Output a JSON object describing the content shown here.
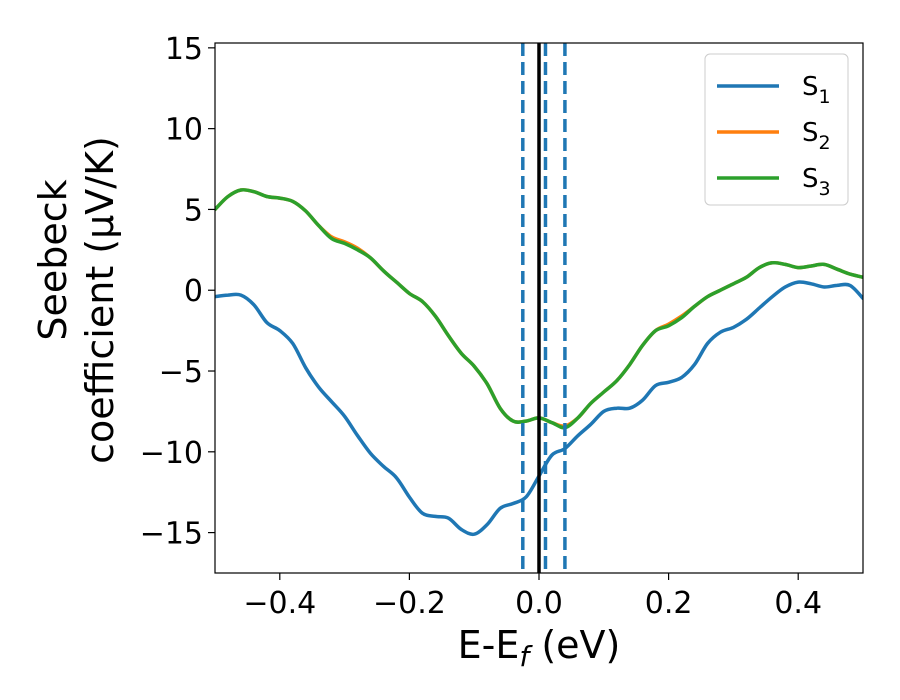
{
  "chart_data": {
    "type": "line",
    "xlabel": "E-E",
    "xlabel_sub": "f",
    "xlabel_unit": " (eV)",
    "ylabel_line1": "Seebeck",
    "ylabel_line2": "coefficient  (μV/K)",
    "xlim": [
      -0.5,
      0.5
    ],
    "ylim": [
      -17.5,
      15.3
    ],
    "x_ticks": [
      -0.4,
      -0.2,
      0.0,
      0.2,
      0.4
    ],
    "x_tick_labels": [
      "−0.4",
      "−0.2",
      "0.0",
      "0.2",
      "0.4"
    ],
    "y_ticks": [
      15,
      10,
      5,
      0,
      -5,
      -10,
      -15
    ],
    "y_tick_labels": [
      "15",
      "10",
      "5",
      "0",
      "−5",
      "−10",
      "−15"
    ],
    "grid": false,
    "legend_position": "top-right",
    "series": [
      {
        "name": "S",
        "sub": "1",
        "color": "#1f77b4",
        "points": [
          [
            -0.5,
            -0.4
          ],
          [
            -0.48,
            -0.3
          ],
          [
            -0.46,
            -0.3
          ],
          [
            -0.44,
            -0.9
          ],
          [
            -0.42,
            -2.0
          ],
          [
            -0.4,
            -2.5
          ],
          [
            -0.38,
            -3.3
          ],
          [
            -0.36,
            -4.8
          ],
          [
            -0.34,
            -6.0
          ],
          [
            -0.32,
            -6.9
          ],
          [
            -0.3,
            -7.8
          ],
          [
            -0.28,
            -9.0
          ],
          [
            -0.26,
            -10.1
          ],
          [
            -0.24,
            -10.9
          ],
          [
            -0.22,
            -11.6
          ],
          [
            -0.2,
            -12.8
          ],
          [
            -0.18,
            -13.8
          ],
          [
            -0.16,
            -14.0
          ],
          [
            -0.14,
            -14.1
          ],
          [
            -0.12,
            -14.8
          ],
          [
            -0.1,
            -15.1
          ],
          [
            -0.08,
            -14.5
          ],
          [
            -0.06,
            -13.5
          ],
          [
            -0.04,
            -13.2
          ],
          [
            -0.02,
            -12.8
          ],
          [
            0.0,
            -11.5
          ],
          [
            0.02,
            -10.2
          ],
          [
            0.04,
            -9.8
          ],
          [
            0.06,
            -9.0
          ],
          [
            0.08,
            -8.3
          ],
          [
            0.1,
            -7.5
          ],
          [
            0.12,
            -7.3
          ],
          [
            0.14,
            -7.3
          ],
          [
            0.16,
            -6.8
          ],
          [
            0.18,
            -5.9
          ],
          [
            0.2,
            -5.7
          ],
          [
            0.22,
            -5.4
          ],
          [
            0.24,
            -4.6
          ],
          [
            0.26,
            -3.3
          ],
          [
            0.28,
            -2.6
          ],
          [
            0.3,
            -2.3
          ],
          [
            0.32,
            -1.8
          ],
          [
            0.34,
            -1.1
          ],
          [
            0.36,
            -0.4
          ],
          [
            0.38,
            0.2
          ],
          [
            0.4,
            0.5
          ],
          [
            0.42,
            0.4
          ],
          [
            0.44,
            0.2
          ],
          [
            0.46,
            0.3
          ],
          [
            0.48,
            0.3
          ],
          [
            0.5,
            -0.5
          ]
        ]
      },
      {
        "name": "S",
        "sub": "2",
        "color": "#ff7f0e",
        "points": [
          [
            -0.5,
            5.0
          ],
          [
            -0.48,
            5.8
          ],
          [
            -0.46,
            6.2
          ],
          [
            -0.44,
            6.1
          ],
          [
            -0.42,
            5.8
          ],
          [
            -0.4,
            5.7
          ],
          [
            -0.38,
            5.5
          ],
          [
            -0.36,
            4.9
          ],
          [
            -0.34,
            4.0
          ],
          [
            -0.32,
            3.3
          ],
          [
            -0.3,
            3.0
          ],
          [
            -0.28,
            2.6
          ],
          [
            -0.26,
            2.0
          ],
          [
            -0.24,
            1.2
          ],
          [
            -0.22,
            0.5
          ],
          [
            -0.2,
            -0.2
          ],
          [
            -0.18,
            -0.7
          ],
          [
            -0.16,
            -1.6
          ],
          [
            -0.14,
            -2.8
          ],
          [
            -0.12,
            -3.9
          ],
          [
            -0.1,
            -4.7
          ],
          [
            -0.08,
            -5.8
          ],
          [
            -0.06,
            -7.3
          ],
          [
            -0.04,
            -8.1
          ],
          [
            -0.02,
            -8.1
          ],
          [
            0.0,
            -7.9
          ],
          [
            0.02,
            -8.2
          ],
          [
            0.04,
            -8.4
          ],
          [
            0.06,
            -7.9
          ],
          [
            0.08,
            -7.0
          ],
          [
            0.1,
            -6.3
          ],
          [
            0.12,
            -5.6
          ],
          [
            0.14,
            -4.6
          ],
          [
            0.16,
            -3.4
          ],
          [
            0.18,
            -2.5
          ],
          [
            0.2,
            -2.1
          ],
          [
            0.22,
            -1.6
          ],
          [
            0.24,
            -1.0
          ],
          [
            0.26,
            -0.4
          ],
          [
            0.28,
            0.0
          ],
          [
            0.3,
            0.4
          ],
          [
            0.32,
            0.8
          ],
          [
            0.34,
            1.4
          ],
          [
            0.36,
            1.7
          ],
          [
            0.38,
            1.6
          ],
          [
            0.4,
            1.4
          ],
          [
            0.42,
            1.5
          ],
          [
            0.44,
            1.6
          ],
          [
            0.46,
            1.3
          ],
          [
            0.48,
            1.0
          ],
          [
            0.5,
            0.8
          ]
        ]
      },
      {
        "name": "S",
        "sub": "3",
        "color": "#2ca02c",
        "points": [
          [
            -0.5,
            5.0
          ],
          [
            -0.48,
            5.8
          ],
          [
            -0.46,
            6.2
          ],
          [
            -0.44,
            6.1
          ],
          [
            -0.42,
            5.8
          ],
          [
            -0.4,
            5.7
          ],
          [
            -0.38,
            5.5
          ],
          [
            -0.36,
            4.9
          ],
          [
            -0.34,
            4.0
          ],
          [
            -0.32,
            3.2
          ],
          [
            -0.3,
            2.9
          ],
          [
            -0.28,
            2.5
          ],
          [
            -0.26,
            2.0
          ],
          [
            -0.24,
            1.2
          ],
          [
            -0.22,
            0.5
          ],
          [
            -0.2,
            -0.2
          ],
          [
            -0.18,
            -0.7
          ],
          [
            -0.16,
            -1.6
          ],
          [
            -0.14,
            -2.8
          ],
          [
            -0.12,
            -3.9
          ],
          [
            -0.1,
            -4.7
          ],
          [
            -0.08,
            -5.8
          ],
          [
            -0.06,
            -7.3
          ],
          [
            -0.04,
            -8.1
          ],
          [
            -0.02,
            -8.1
          ],
          [
            0.0,
            -7.9
          ],
          [
            0.02,
            -8.2
          ],
          [
            0.04,
            -8.5
          ],
          [
            0.06,
            -7.9
          ],
          [
            0.08,
            -7.0
          ],
          [
            0.1,
            -6.3
          ],
          [
            0.12,
            -5.6
          ],
          [
            0.14,
            -4.6
          ],
          [
            0.16,
            -3.4
          ],
          [
            0.18,
            -2.5
          ],
          [
            0.2,
            -2.2
          ],
          [
            0.22,
            -1.7
          ],
          [
            0.24,
            -1.0
          ],
          [
            0.26,
            -0.4
          ],
          [
            0.28,
            0.0
          ],
          [
            0.3,
            0.4
          ],
          [
            0.32,
            0.8
          ],
          [
            0.34,
            1.4
          ],
          [
            0.36,
            1.7
          ],
          [
            0.38,
            1.6
          ],
          [
            0.4,
            1.4
          ],
          [
            0.42,
            1.5
          ],
          [
            0.44,
            1.6
          ],
          [
            0.46,
            1.3
          ],
          [
            0.48,
            1.0
          ],
          [
            0.5,
            0.8
          ]
        ]
      }
    ],
    "vertical_lines": [
      {
        "x": 0.0,
        "color": "#000000",
        "style": "solid"
      },
      {
        "x": -0.025,
        "color": "#1f77b4",
        "style": "dashed"
      },
      {
        "x": 0.01,
        "color": "#1f77b4",
        "style": "dashed"
      },
      {
        "x": 0.04,
        "color": "#1f77b4",
        "style": "dashed"
      }
    ]
  }
}
